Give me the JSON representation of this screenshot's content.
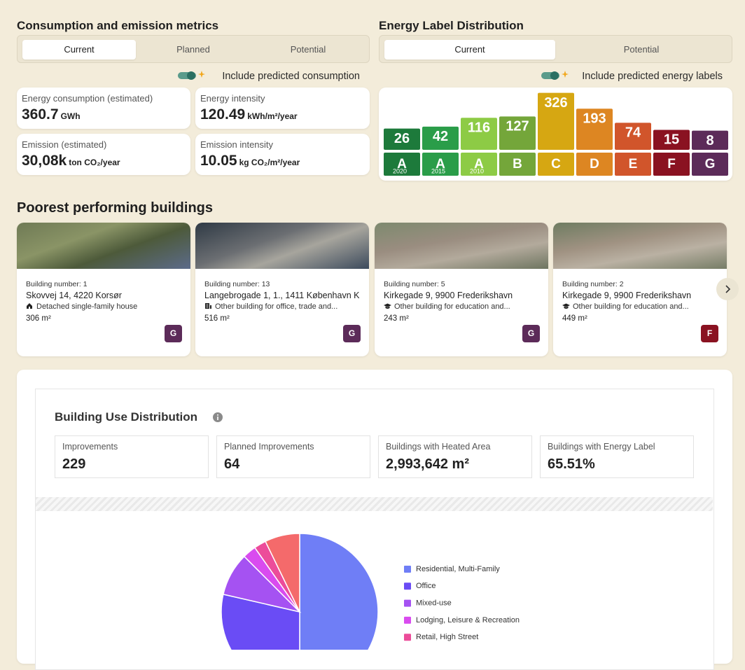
{
  "metrics": {
    "title": "Consumption and emission metrics",
    "tabs": [
      "Current",
      "Planned",
      "Potential"
    ],
    "toggle_label": "Include predicted consumption",
    "cards": [
      {
        "label": "Energy consumption (estimated)",
        "value": "360.7",
        "unit": "GWh"
      },
      {
        "label": "Energy intensity",
        "value": "120.49",
        "unit": "kWh/m²/year"
      },
      {
        "label": "Emission (estimated)",
        "value": "30,08k",
        "unit": "ton CO₂/year"
      },
      {
        "label": "Emission intensity",
        "value": "10.05",
        "unit": "kg CO₂/m²/year"
      }
    ]
  },
  "energy_panel": {
    "tabs": [
      "Current",
      "Potential"
    ],
    "toggle_label": "Include predicted energy labels"
  },
  "poorest": {
    "title": "Poorest performing buildings",
    "buildings": [
      {
        "number": "Building number: 1",
        "address": "Skovvej 14, 4220 Korsør",
        "use": "Detached single-family house",
        "area": "306 m²",
        "label": "G"
      },
      {
        "number": "Building number: 13",
        "address": "Langebrogade 1, 1., 1411 København K",
        "use": "Other building for office, trade and...",
        "area": "516 m²",
        "label": "G"
      },
      {
        "number": "Building number: 5",
        "address": "Kirkegade 9, 9900 Frederikshavn",
        "use": "Other building for education and...",
        "area": "243 m²",
        "label": "G"
      },
      {
        "number": "Building number: 2",
        "address": "Kirkegade 9, 9900 Frederikshavn",
        "use": "Other building for education and...",
        "area": "449 m²",
        "label": "F"
      }
    ]
  },
  "building_use": {
    "title": "Building Use Distribution",
    "stats": [
      {
        "label": "Improvements",
        "value": "229"
      },
      {
        "label": "Planned Improvements",
        "value": "64"
      },
      {
        "label": "Buildings with Heated Area",
        "value": "2,993,642 m²"
      },
      {
        "label": "Buildings with Energy Label",
        "value": "65.51%"
      }
    ]
  },
  "chart_data": [
    {
      "type": "bar",
      "title": "Energy Label Distribution",
      "categories": [
        "A",
        "A",
        "A",
        "B",
        "C",
        "D",
        "E",
        "F",
        "G"
      ],
      "sublabels": [
        "2020",
        "2015",
        "2010",
        null,
        null,
        null,
        null,
        null,
        null
      ],
      "values": [
        26,
        42,
        116,
        127,
        326,
        193,
        74,
        15,
        8
      ],
      "colors": [
        "#1d7a3b",
        "#2a9d49",
        "#8dcb45",
        "#74a63a",
        "#d6a712",
        "#dd8622",
        "#d1552b",
        "#8a1221",
        "#5c2b59"
      ]
    },
    {
      "type": "pie",
      "categories": [
        "Residential, Multi-Family",
        "Office",
        "Mixed-use",
        "Lodging, Leisure & Recreation",
        "Retail, High Street",
        null
      ],
      "values": [
        50,
        28.6,
        8.9,
        2.8,
        2.5,
        7.2
      ],
      "colors": [
        "#6f7ef6",
        "#6a4cf5",
        "#a552f2",
        "#d94bef",
        "#ec4c9a",
        "#f46a6b"
      ]
    }
  ]
}
